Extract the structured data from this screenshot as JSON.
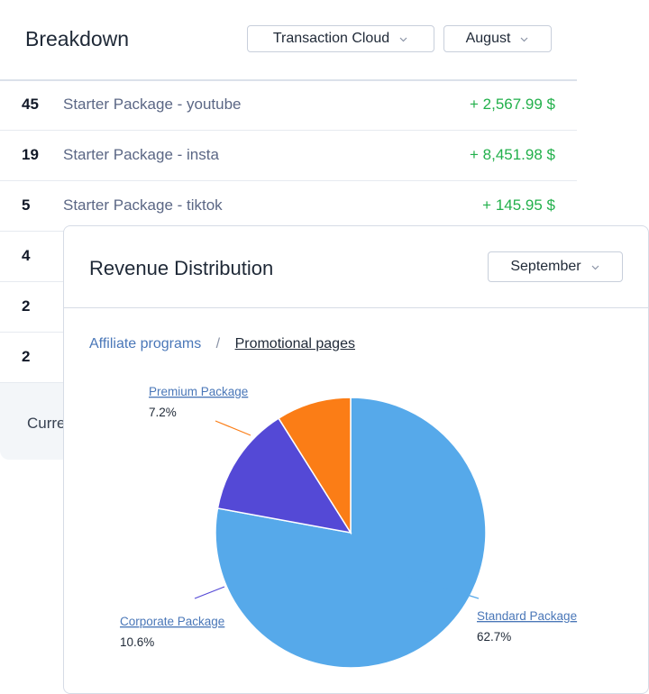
{
  "breakdown": {
    "title": "Breakdown",
    "filter": "Transaction Cloud",
    "month": "August",
    "rows": [
      {
        "count": "45",
        "name": "Starter Package - youtube",
        "amount": "+ 2,567.99 $"
      },
      {
        "count": "19",
        "name": "Starter Package - insta",
        "amount": "+ 8,451.98 $"
      },
      {
        "count": "5",
        "name": "Starter Package - tiktok",
        "amount": "+ 145.95 $"
      },
      {
        "count": "4",
        "name": "",
        "amount": ""
      },
      {
        "count": "2",
        "name": "",
        "amount": ""
      },
      {
        "count": "2",
        "name": "",
        "amount": ""
      }
    ],
    "footer_label": "Curre"
  },
  "revenue": {
    "title": "Revenue Distribution",
    "month": "September",
    "tabs": [
      "Affiliate programs",
      "Promotional pages"
    ],
    "tab_separator": "/",
    "active_tab": "Promotional pages"
  },
  "chart_data": {
    "type": "pie",
    "slices": [
      {
        "label": "Standard Package",
        "value": 62.7,
        "display": "62.7%",
        "color": "#56a9ea"
      },
      {
        "label": "Corporate Package",
        "value": 10.6,
        "display": "10.6%",
        "color": "#5449d6"
      },
      {
        "label": "Premium Package",
        "value": 7.2,
        "display": "7.2%",
        "color": "#fb7d16"
      }
    ],
    "start_angle_deg": 0
  },
  "colors": {
    "positive": "#22b04b",
    "link": "#4a77b8"
  }
}
